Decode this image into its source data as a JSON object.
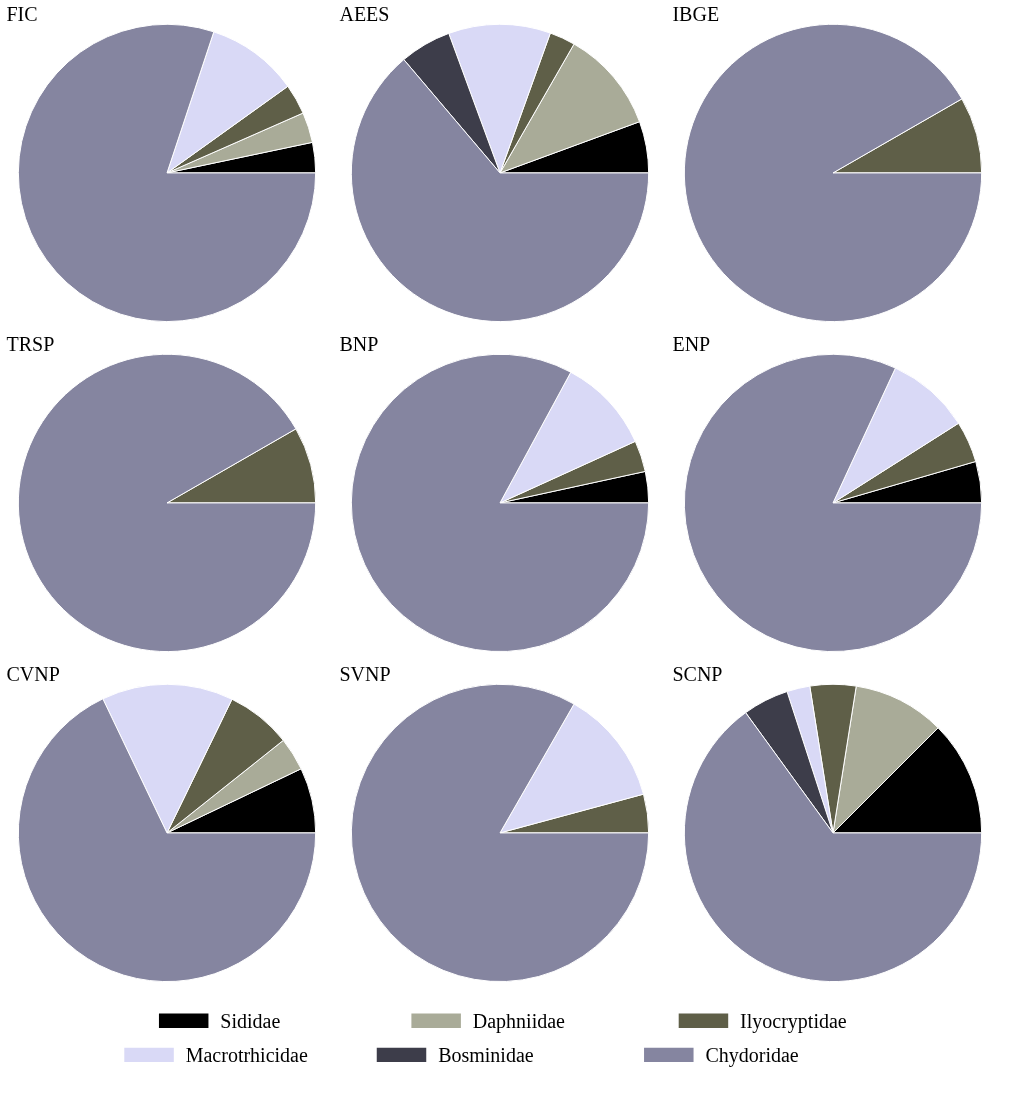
{
  "chart_data": [
    {
      "type": "pie",
      "title": "FIC",
      "legend": "bottom",
      "categories": [
        "Sididae",
        "Daphniidae",
        "Ilyocryptidae",
        "Macrotrhicidae",
        "Bosminidae",
        "Chydoridae"
      ],
      "values": [
        3.3,
        3.3,
        3.3,
        10,
        0,
        80.1
      ],
      "colors": [
        "#000000",
        "#a9ab98",
        "#5f5f48",
        "#d9d9f6",
        "#3d3d4a",
        "#8585a0"
      ]
    },
    {
      "type": "pie",
      "title": "AEES",
      "values": [
        5.6,
        11.1,
        2.8,
        11.1,
        5.6,
        63.8
      ],
      "colors": [
        "#000000",
        "#a9ab98",
        "#5f5f48",
        "#d9d9f6",
        "#3d3d4a",
        "#8585a0"
      ]
    },
    {
      "type": "pie",
      "title": "IBGE",
      "values": [
        0,
        0,
        8.3,
        0,
        0,
        91.7
      ],
      "colors": [
        "#000000",
        "#a9ab98",
        "#5f5f48",
        "#d9d9f6",
        "#3d3d4a",
        "#8585a0"
      ]
    },
    {
      "type": "pie",
      "title": "TRSP",
      "values": [
        0,
        0,
        8.3,
        0,
        0,
        91.7
      ],
      "colors": [
        "#000000",
        "#a9ab98",
        "#5f5f48",
        "#d9d9f6",
        "#3d3d4a",
        "#8585a0"
      ]
    },
    {
      "type": "pie",
      "title": "BNP",
      "values": [
        3.4,
        0,
        3.4,
        10.3,
        0,
        82.9
      ],
      "colors": [
        "#000000",
        "#a9ab98",
        "#5f5f48",
        "#d9d9f6",
        "#3d3d4a",
        "#8585a0"
      ]
    },
    {
      "type": "pie",
      "title": "ENP",
      "values": [
        4.5,
        0,
        4.5,
        9.1,
        0,
        81.9
      ],
      "colors": [
        "#000000",
        "#a9ab98",
        "#5f5f48",
        "#d9d9f6",
        "#3d3d4a",
        "#8585a0"
      ]
    },
    {
      "type": "pie",
      "title": "CVNP",
      "values": [
        7.1,
        3.6,
        7.1,
        14.3,
        0,
        67.9
      ],
      "colors": [
        "#000000",
        "#a9ab98",
        "#5f5f48",
        "#d9d9f6",
        "#3d3d4a",
        "#8585a0"
      ]
    },
    {
      "type": "pie",
      "title": "SVNP",
      "values": [
        0,
        0,
        4.2,
        12.5,
        0,
        83.3
      ],
      "colors": [
        "#000000",
        "#a9ab98",
        "#5f5f48",
        "#d9d9f6",
        "#3d3d4a",
        "#8585a0"
      ]
    },
    {
      "type": "pie",
      "title": "SCNP",
      "values": [
        12.5,
        10,
        5,
        2.5,
        5,
        65
      ],
      "colors": [
        "#000000",
        "#a9ab98",
        "#5f5f48",
        "#d9d9f6",
        "#3d3d4a",
        "#8585a0"
      ]
    }
  ]
}
